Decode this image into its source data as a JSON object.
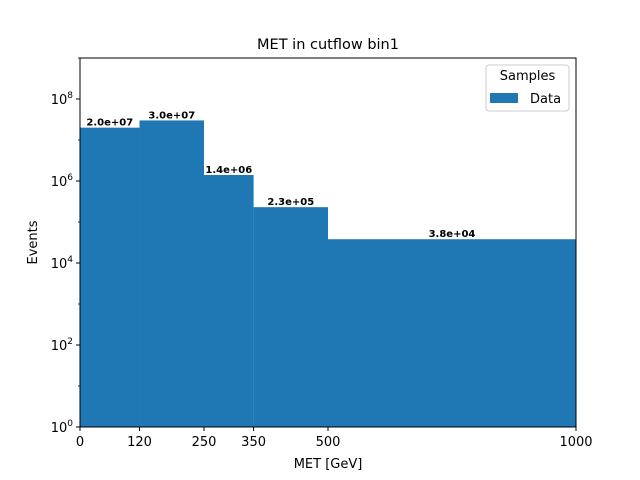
{
  "chart_data": {
    "type": "bar",
    "title": "MET in cutflow bin1",
    "xlabel": "MET [GeV]",
    "ylabel": "Events",
    "xscale": "linear",
    "yscale": "log",
    "xlim": [
      0,
      1000
    ],
    "ylim": [
      1,
      1000000000.0
    ],
    "bin_edges": [
      0,
      120,
      250,
      350,
      500,
      1000
    ],
    "xticks": [
      0,
      120,
      250,
      350,
      500,
      1000
    ],
    "xtick_labels": [
      "0",
      "120",
      "250",
      "350",
      "500",
      "1000"
    ],
    "yticks": [
      1,
      100,
      10000,
      1000000,
      100000000
    ],
    "ytick_labels": [
      {
        "base": "10",
        "exp": "0"
      },
      {
        "base": "10",
        "exp": "2"
      },
      {
        "base": "10",
        "exp": "4"
      },
      {
        "base": "10",
        "exp": "6"
      },
      {
        "base": "10",
        "exp": "8"
      }
    ],
    "series": [
      {
        "name": "Data",
        "color": "#1f77b4",
        "values": [
          20000000,
          30000000,
          1400000,
          230000,
          38000
        ],
        "labels": [
          "2.0e+07",
          "3.0e+07",
          "1.4e+06",
          "2.3e+05",
          "3.8e+04"
        ]
      }
    ],
    "legend": {
      "title": "Samples",
      "position": "top-right"
    },
    "grid": false
  }
}
